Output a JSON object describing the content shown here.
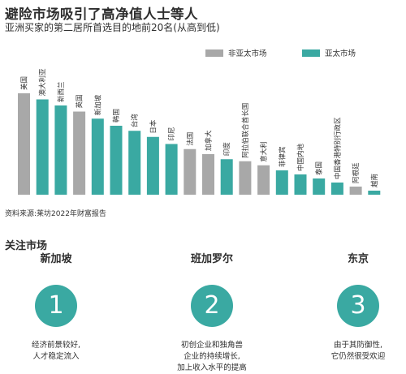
{
  "title": "避险市场吸引了高净值人士等人",
  "subtitle": "亚洲买家的第二居所首选目的地前20名(从高到低)",
  "legend": {
    "non_apac": "非亚太市场",
    "apac": "亚太市场"
  },
  "colors": {
    "non_apac": "#a8a8a8",
    "apac": "#3aa9a2"
  },
  "chart_data": {
    "type": "bar",
    "categories": [
      "美国",
      "澳大利亚",
      "新西兰",
      "英国",
      "新加坡",
      "韩国",
      "台湾",
      "日本",
      "印尼",
      "法国",
      "加拿大",
      "印度",
      "阿拉伯联合酋长国",
      "意大利",
      "菲律宾",
      "中国内地",
      "泰国",
      "中国香港特别行政区",
      "阿根廷",
      "越南"
    ],
    "values": [
      100,
      94,
      88,
      82,
      75,
      68,
      63,
      57,
      50,
      45,
      40,
      35,
      33,
      29,
      24,
      20,
      16,
      12,
      8,
      4
    ],
    "groups": [
      "non_apac",
      "apac",
      "apac",
      "non_apac",
      "apac",
      "apac",
      "apac",
      "apac",
      "apac",
      "non_apac",
      "non_apac",
      "apac",
      "non_apac",
      "non_apac",
      "apac",
      "apac",
      "apac",
      "apac",
      "non_apac",
      "apac"
    ],
    "ylim": [
      0,
      100
    ],
    "grid": false,
    "legend_position": "top-right"
  },
  "source": "资料来源:莱坊2022年财富报告",
  "focus": {
    "heading": "关注市场",
    "markets": [
      {
        "name": "新加坡",
        "number": "1",
        "desc": "经济前景较好,\n人才稳定流入"
      },
      {
        "name": "班加罗尔",
        "number": "2",
        "desc": "初创企业和独角兽\n企业的持续增长,\n加上收入水平的提高"
      },
      {
        "name": "东京",
        "number": "3",
        "desc": "由于其防御性,\n它仍然很受欢迎"
      }
    ]
  }
}
